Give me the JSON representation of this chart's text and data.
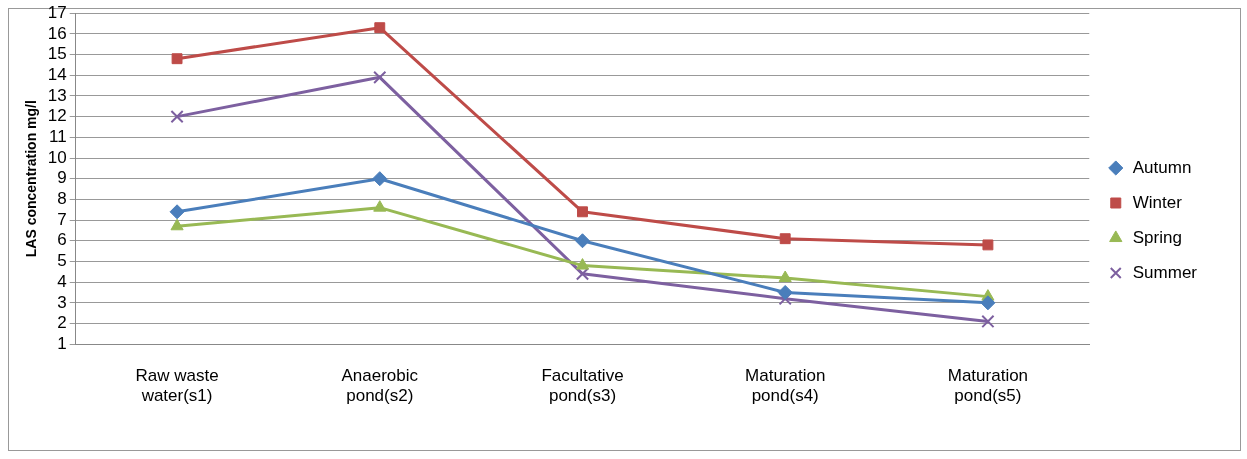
{
  "chart_data": {
    "type": "line",
    "ylabel": "LAS concentration mg/l",
    "categories": [
      "Raw waste water(s1)",
      "Anaerobic pond(s2)",
      "Facultative pond(s3)",
      "Maturation pond(s4)",
      "Maturation pond(s5)"
    ],
    "series": [
      {
        "name": "Autumn",
        "color": "#4a7ebb",
        "marker": "diamond",
        "values": [
          7.4,
          9.0,
          6.0,
          3.5,
          3.0
        ]
      },
      {
        "name": "Winter",
        "color": "#be4b48",
        "marker": "square",
        "values": [
          14.8,
          16.3,
          7.4,
          6.1,
          5.8
        ]
      },
      {
        "name": "Spring",
        "color": "#98b954",
        "marker": "triangle",
        "values": [
          6.7,
          7.6,
          4.8,
          4.2,
          3.3
        ]
      },
      {
        "name": "Summer",
        "color": "#7d60a0",
        "marker": "cross",
        "values": [
          12.0,
          13.9,
          4.4,
          3.2,
          2.1
        ]
      }
    ],
    "ylim": [
      1,
      17
    ],
    "yticks": [
      1,
      2,
      3,
      4,
      5,
      6,
      7,
      8,
      9,
      10,
      11,
      12,
      13,
      14,
      15,
      16,
      17
    ],
    "grid": "y",
    "legend": "right",
    "line_style": "solid"
  }
}
